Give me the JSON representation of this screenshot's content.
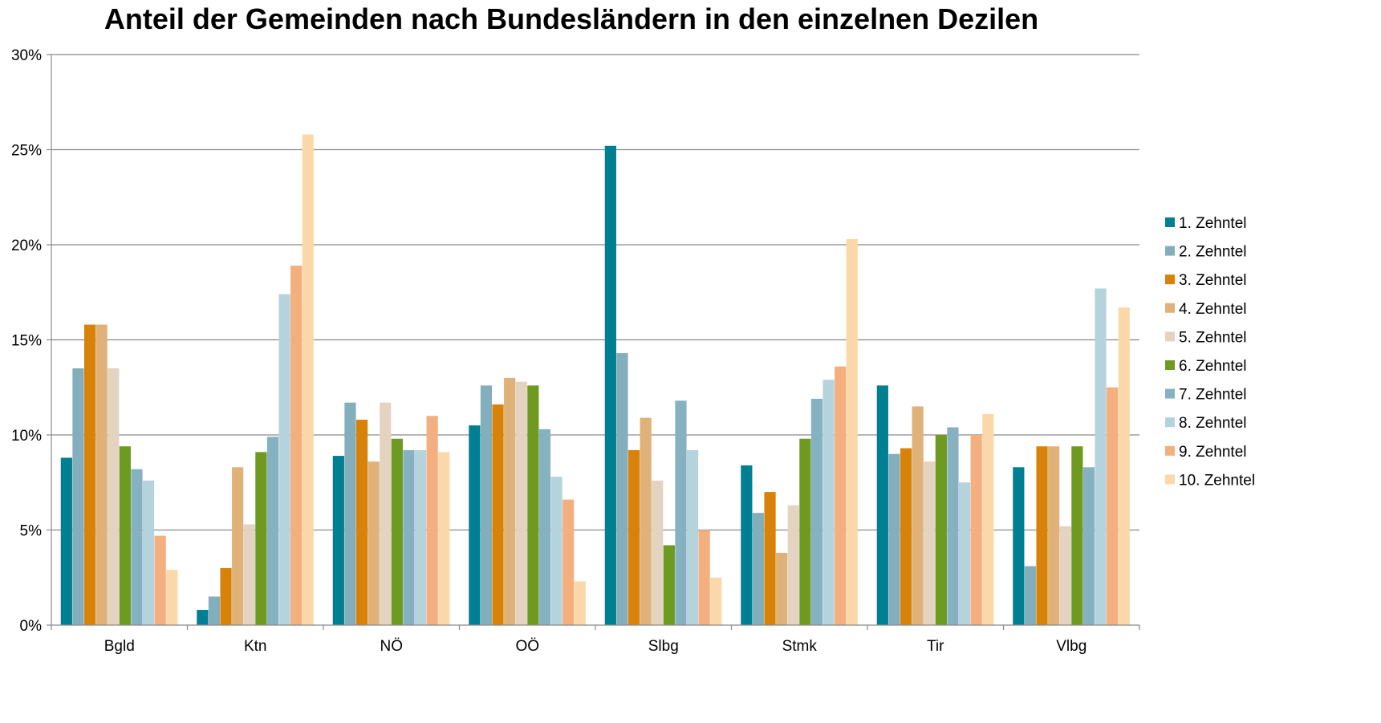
{
  "chart_data": {
    "type": "bar",
    "title": "Anteil der Gemeinden nach Bundesländern in den einzelnen Dezilen",
    "xlabel": "",
    "ylabel": "",
    "ylim": [
      0,
      30
    ],
    "y_ticks": [
      0,
      5,
      10,
      15,
      20,
      25,
      30
    ],
    "y_tick_labels": [
      "0%",
      "5%",
      "10%",
      "15%",
      "20%",
      "25%",
      "30%"
    ],
    "grid": true,
    "legend_position": "right",
    "categories": [
      "Bgld",
      "Ktn",
      "NÖ",
      "OÖ",
      "Slbg",
      "Stmk",
      "Tir",
      "Vlbg"
    ],
    "series": [
      {
        "name": "1. Zehntel",
        "color": "#017F92",
        "values": [
          8.8,
          0.8,
          8.9,
          10.5,
          25.2,
          8.4,
          12.6,
          8.3
        ]
      },
      {
        "name": "2. Zehntel",
        "color": "#83AEBB",
        "values": [
          13.5,
          1.5,
          11.7,
          12.6,
          14.3,
          5.9,
          9.0,
          3.1
        ]
      },
      {
        "name": "3. Zehntel",
        "color": "#D9820A",
        "values": [
          15.8,
          3.0,
          10.8,
          11.6,
          9.2,
          7.0,
          9.3,
          9.4
        ]
      },
      {
        "name": "4. Zehntel",
        "color": "#E0B27A",
        "values": [
          15.8,
          8.3,
          8.6,
          13.0,
          10.9,
          3.8,
          11.5,
          9.4
        ]
      },
      {
        "name": "5. Zehntel",
        "color": "#E3D3C0",
        "values": [
          13.5,
          5.3,
          11.7,
          12.8,
          7.6,
          6.3,
          8.6,
          5.2
        ]
      },
      {
        "name": "6. Zehntel",
        "color": "#6E9A22",
        "values": [
          9.4,
          9.1,
          9.8,
          12.6,
          4.2,
          9.8,
          10.0,
          9.4
        ]
      },
      {
        "name": "7. Zehntel",
        "color": "#86B1C0",
        "values": [
          8.2,
          9.9,
          9.2,
          10.3,
          11.8,
          11.9,
          10.4,
          8.3
        ]
      },
      {
        "name": "8. Zehntel",
        "color": "#B5D3DC",
        "values": [
          7.6,
          17.4,
          9.2,
          7.8,
          9.2,
          12.9,
          7.5,
          17.7
        ]
      },
      {
        "name": "9. Zehntel",
        "color": "#F3AF7E",
        "values": [
          4.7,
          18.9,
          11.0,
          6.6,
          5.0,
          13.6,
          10.0,
          12.5
        ]
      },
      {
        "name": "10. Zehntel",
        "color": "#FBD8AA",
        "values": [
          2.9,
          25.8,
          9.1,
          2.3,
          2.5,
          20.3,
          11.1,
          16.7
        ]
      }
    ]
  }
}
